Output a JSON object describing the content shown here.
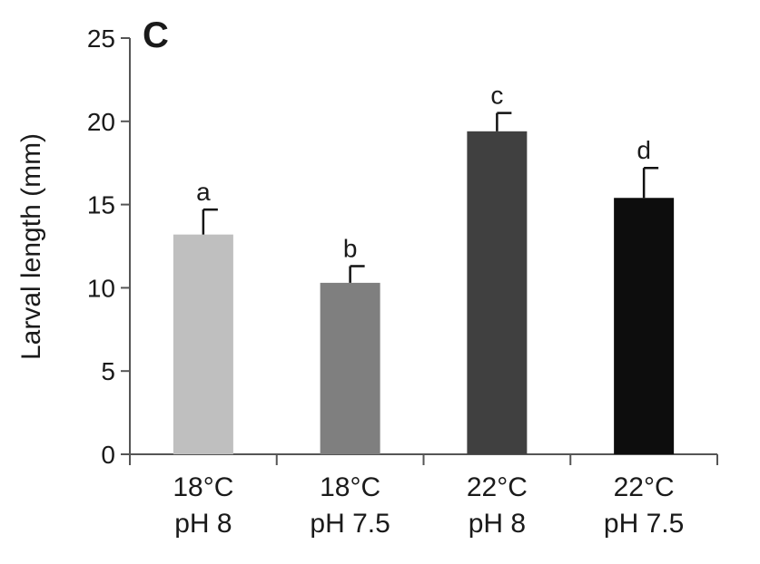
{
  "chart_data": {
    "type": "bar",
    "panel_label": "C",
    "ylabel": "Larval length (mm)",
    "ylim": [
      0,
      25
    ],
    "yticks": [
      "0",
      "5",
      "10",
      "15",
      "20",
      "25"
    ],
    "categories": [
      {
        "line1": "18°C",
        "line2": "pH 8"
      },
      {
        "line1": "18°C",
        "line2": "pH 7.5"
      },
      {
        "line1": "22°C",
        "line2": "pH 8"
      },
      {
        "line1": "22°C",
        "line2": "pH 7.5"
      }
    ],
    "values": [
      13.2,
      10.3,
      19.4,
      15.4
    ],
    "errors": [
      1.5,
      1.0,
      1.1,
      1.8
    ],
    "significance_labels": [
      "a",
      "b",
      "c",
      "d"
    ],
    "bar_colors": [
      "#bfbfbf",
      "#7f7f7f",
      "#404040",
      "#0d0d0d"
    ],
    "grid": false,
    "legend": "none"
  }
}
